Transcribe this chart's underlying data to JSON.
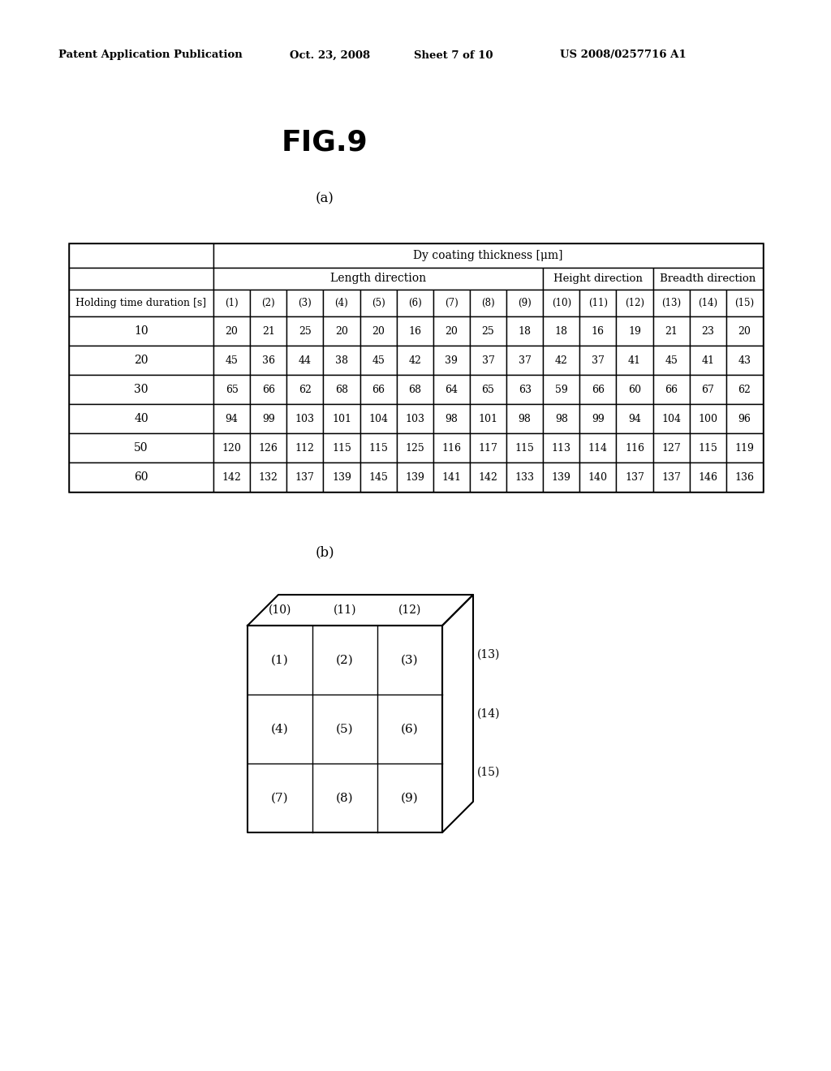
{
  "header_line1": "Patent Application Publication",
  "header_date": "Oct. 23, 2008",
  "header_sheet": "Sheet 7 of 10",
  "header_patent": "US 2008/0257716 A1",
  "fig_title": "FIG.9",
  "label_a": "(a)",
  "label_b": "(b)",
  "table_header_row1": "Dy coating thickness [μm]",
  "table_data": [
    [
      10,
      20,
      21,
      25,
      20,
      20,
      16,
      20,
      25,
      18,
      18,
      16,
      19,
      21,
      23,
      20
    ],
    [
      20,
      45,
      36,
      44,
      38,
      45,
      42,
      39,
      37,
      37,
      42,
      37,
      41,
      45,
      41,
      43
    ],
    [
      30,
      65,
      66,
      62,
      68,
      66,
      68,
      64,
      65,
      63,
      59,
      66,
      60,
      66,
      67,
      62
    ],
    [
      40,
      94,
      99,
      103,
      101,
      104,
      103,
      98,
      101,
      98,
      98,
      99,
      94,
      104,
      100,
      96
    ],
    [
      50,
      120,
      126,
      112,
      115,
      115,
      125,
      116,
      117,
      115,
      113,
      114,
      116,
      127,
      115,
      119
    ],
    [
      60,
      142,
      132,
      137,
      139,
      145,
      139,
      141,
      142,
      133,
      139,
      140,
      137,
      137,
      146,
      136
    ]
  ],
  "col_labels": [
    "(1)",
    "(2)",
    "(3)",
    "(4)",
    "(5)",
    "(6)",
    "(7)",
    "(8)",
    "(9)",
    "(10)",
    "(11)",
    "(12)",
    "(13)",
    "(14)",
    "(15)"
  ],
  "front_labels": [
    [
      "(1)",
      "(2)",
      "(3)"
    ],
    [
      "(4)",
      "(5)",
      "(6)"
    ],
    [
      "(7)",
      "(8)",
      "(9)"
    ]
  ],
  "top_labels": [
    "(10)",
    "(11)",
    "(12)"
  ],
  "right_labels": [
    "(13)",
    "(14)",
    "(15)"
  ]
}
